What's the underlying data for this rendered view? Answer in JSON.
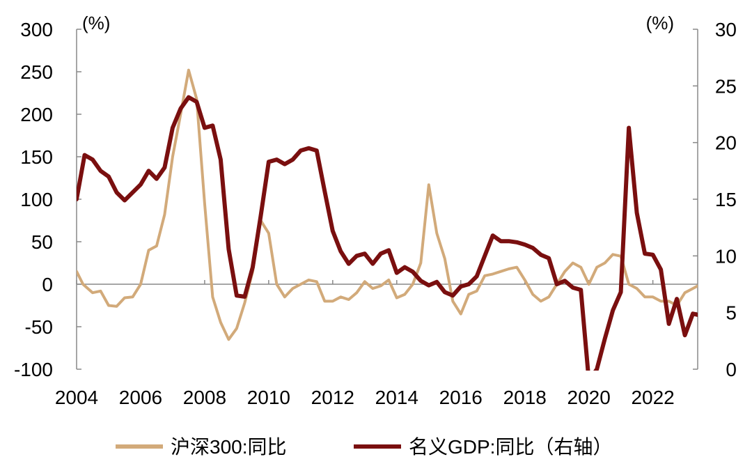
{
  "chart_data": {
    "type": "line",
    "left_unit": "(%)",
    "right_unit": "(%)",
    "left_ylim": [
      -100,
      300
    ],
    "right_ylim": [
      0,
      30
    ],
    "left_ticks": [
      "300",
      "250",
      "200",
      "150",
      "100",
      "50",
      "0",
      "-50",
      "-100"
    ],
    "right_ticks": [
      "30",
      "25",
      "20",
      "15",
      "10",
      "5",
      "0"
    ],
    "x_ticks": [
      "2004",
      "2006",
      "2008",
      "2010",
      "2012",
      "2014",
      "2016",
      "2018",
      "2020",
      "2022"
    ],
    "xlim": [
      2004.0,
      2023.4
    ],
    "grid": false,
    "legend_position": "bottom",
    "colors": {
      "csi300": "#d2aa7a",
      "gdp": "#7a0f0f",
      "axis": "#888888"
    },
    "series": [
      {
        "name": "沪深300:同比",
        "axis": "left",
        "x": [
          2004.0,
          2004.2,
          2004.5,
          2004.75,
          2005.0,
          2005.25,
          2005.5,
          2005.75,
          2006.0,
          2006.25,
          2006.5,
          2006.75,
          2007.0,
          2007.25,
          2007.5,
          2007.75,
          2008.0,
          2008.25,
          2008.5,
          2008.75,
          2009.0,
          2009.25,
          2009.5,
          2009.75,
          2010.0,
          2010.25,
          2010.5,
          2010.75,
          2011.0,
          2011.25,
          2011.5,
          2011.75,
          2012.0,
          2012.25,
          2012.5,
          2012.75,
          2013.0,
          2013.25,
          2013.5,
          2013.75,
          2014.0,
          2014.25,
          2014.5,
          2014.75,
          2015.0,
          2015.25,
          2015.5,
          2015.75,
          2016.0,
          2016.25,
          2016.5,
          2016.75,
          2017.0,
          2017.25,
          2017.5,
          2017.75,
          2018.0,
          2018.25,
          2018.5,
          2018.75,
          2019.0,
          2019.25,
          2019.5,
          2019.75,
          2020.0,
          2020.25,
          2020.5,
          2020.75,
          2021.0,
          2021.25,
          2021.5,
          2021.75,
          2022.0,
          2022.25,
          2022.5,
          2022.75,
          2023.0,
          2023.25,
          2023.4
        ],
        "values": [
          15,
          0,
          -10,
          -8,
          -25,
          -26,
          -16,
          -15,
          0,
          40,
          45,
          82,
          150,
          200,
          252,
          218,
          95,
          -15,
          -45,
          -65,
          -52,
          -22,
          15,
          75,
          60,
          0,
          -15,
          -5,
          0,
          5,
          3,
          -20,
          -20,
          -15,
          -18,
          -10,
          3,
          -5,
          -2,
          5,
          -16,
          -12,
          0,
          25,
          117,
          60,
          30,
          -20,
          -35,
          -12,
          -8,
          10,
          12,
          15,
          18,
          20,
          5,
          -12,
          -20,
          -15,
          0,
          15,
          25,
          20,
          0,
          20,
          25,
          35,
          33,
          0,
          -5,
          -15,
          -15,
          -20,
          -20,
          -25,
          -10,
          -5,
          -2
        ]
      },
      {
        "name": "名义GDP:同比（右轴）",
        "axis": "right",
        "x": [
          2004.0,
          2004.25,
          2004.5,
          2004.75,
          2005.0,
          2005.25,
          2005.5,
          2005.75,
          2006.0,
          2006.25,
          2006.5,
          2006.75,
          2007.0,
          2007.25,
          2007.5,
          2007.75,
          2008.0,
          2008.25,
          2008.5,
          2008.75,
          2009.0,
          2009.25,
          2009.5,
          2009.75,
          2010.0,
          2010.25,
          2010.5,
          2010.75,
          2011.0,
          2011.25,
          2011.5,
          2011.75,
          2012.0,
          2012.25,
          2012.5,
          2012.75,
          2013.0,
          2013.25,
          2013.5,
          2013.75,
          2014.0,
          2014.25,
          2014.5,
          2014.75,
          2015.0,
          2015.25,
          2015.5,
          2015.75,
          2016.0,
          2016.25,
          2016.5,
          2016.75,
          2017.0,
          2017.25,
          2017.5,
          2017.75,
          2018.0,
          2018.25,
          2018.5,
          2018.75,
          2019.0,
          2019.25,
          2019.5,
          2019.75,
          2020.0,
          2020.25,
          2020.5,
          2020.75,
          2021.0,
          2021.25,
          2021.5,
          2021.75,
          2022.0,
          2022.25,
          2022.5,
          2022.75,
          2023.0,
          2023.25,
          2023.4
        ],
        "values": [
          15,
          18.9,
          18.5,
          17.5,
          17,
          15.6,
          14.9,
          15.6,
          16.3,
          17.5,
          16.8,
          17.8,
          21.3,
          23,
          24,
          23.6,
          21.3,
          21.5,
          18.5,
          10.6,
          6.5,
          6.4,
          9,
          13.5,
          18.3,
          18.5,
          18.1,
          18.5,
          19.3,
          19.5,
          19.3,
          15.7,
          12.2,
          10.4,
          9.3,
          10,
          10.2,
          9.3,
          10.2,
          10.5,
          8.5,
          9,
          8.6,
          7.8,
          7.4,
          7.7,
          6.8,
          6.5,
          7.3,
          7.5,
          8.2,
          10,
          11.8,
          11.3,
          11.3,
          11.2,
          11,
          10.7,
          10.1,
          9.8,
          7.5,
          7.8,
          7.2,
          7,
          -1,
          0,
          2.7,
          5.2,
          6.8,
          21.3,
          13.8,
          10.2,
          10.1,
          8.8,
          4.0,
          6.2,
          3.0,
          4.9,
          4.8
        ]
      }
    ]
  }
}
